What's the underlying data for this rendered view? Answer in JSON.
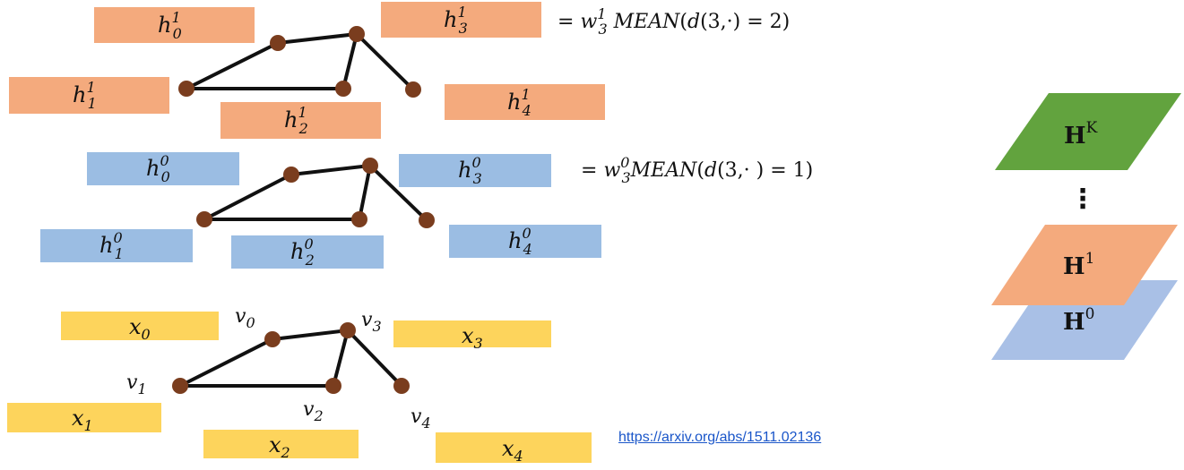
{
  "colors": {
    "layer1": "#f4aa7d",
    "layer0": "#9bbde3",
    "input": "#fdd45c",
    "layerK": "#62a33e",
    "layer1_stack": "#f4aa7d",
    "layer0_stack": "#a9c0e6",
    "node": "#7a3d1e",
    "edge": "#111111"
  },
  "layer1_boxes": [
    {
      "base": "h",
      "sup": "1",
      "sub": "0"
    },
    {
      "base": "h",
      "sup": "1",
      "sub": "1"
    },
    {
      "base": "h",
      "sup": "1",
      "sub": "2"
    },
    {
      "base": "h",
      "sup": "1",
      "sub": "3"
    },
    {
      "base": "h",
      "sup": "1",
      "sub": "4"
    }
  ],
  "layer0_boxes": [
    {
      "base": "h",
      "sup": "0",
      "sub": "0"
    },
    {
      "base": "h",
      "sup": "0",
      "sub": "1"
    },
    {
      "base": "h",
      "sup": "0",
      "sub": "2"
    },
    {
      "base": "h",
      "sup": "0",
      "sub": "3"
    },
    {
      "base": "h",
      "sup": "0",
      "sub": "4"
    }
  ],
  "input_boxes": [
    {
      "base": "x",
      "sub": "0"
    },
    {
      "base": "x",
      "sub": "1"
    },
    {
      "base": "x",
      "sub": "2"
    },
    {
      "base": "x",
      "sub": "3"
    },
    {
      "base": "x",
      "sub": "4"
    }
  ],
  "vertex_labels": [
    {
      "base": "v",
      "sub": "0"
    },
    {
      "base": "v",
      "sub": "1"
    },
    {
      "base": "v",
      "sub": "2"
    },
    {
      "base": "v",
      "sub": "3"
    },
    {
      "base": "v",
      "sub": "4"
    }
  ],
  "equations": {
    "layer1": {
      "prefix": "= ",
      "w": "w",
      "w_sup": "1",
      "w_sub": "3",
      "fn": " MEAN",
      "arg_open": "(",
      "d": "d",
      "args": "(3,·)",
      "rest": " = 2)"
    },
    "layer0": {
      "prefix": "= ",
      "w": "w",
      "w_sup": "0",
      "w_sub": "3",
      "fn": "MEAN",
      "arg_open": "(",
      "d": "d",
      "args": "(3,· )",
      "rest": " = 1)"
    }
  },
  "stack": {
    "top": {
      "base": "H",
      "sup": "K"
    },
    "dots": "⋮",
    "middle": {
      "base": "H",
      "sup": "1"
    },
    "bottom": {
      "base": "H",
      "sup": "0"
    }
  },
  "source_link": "https://arxiv.org/abs/1511.02136"
}
